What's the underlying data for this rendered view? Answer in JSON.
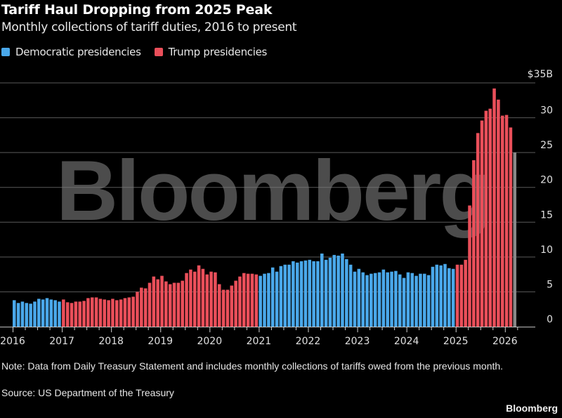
{
  "header": {
    "title": "Tariff Haul Dropping from 2025 Peak",
    "subtitle": "Monthly collections of tariff duties, 2016 to present"
  },
  "legend": [
    {
      "label": "Democratic presidencies",
      "color": "#4aa8ea"
    },
    {
      "label": "Trump presidencies",
      "color": "#ea4f5a"
    }
  ],
  "watermark": "Bloomberg",
  "footer": {
    "note": "Note: Data from Daily Treasury Statement and includes monthly collections of tariffs owed from the previous month.",
    "source": "Source: US Department of the Treasury",
    "brand": "Bloomberg"
  },
  "chart_data": {
    "type": "bar",
    "title": "Tariff Haul Dropping from 2025 Peak",
    "subtitle": "Monthly collections of tariff duties, 2016 to present",
    "xlabel": "",
    "ylabel": "",
    "y_unit_label": "$35B",
    "ylim": [
      0,
      35
    ],
    "yticks": [
      0,
      5,
      10,
      15,
      20,
      25,
      30,
      35
    ],
    "ytick_labels": [
      "0",
      "5",
      "10",
      "15",
      "20",
      "25",
      "30",
      "$35B"
    ],
    "xticks": [
      "2016",
      "2017",
      "2018",
      "2019",
      "2020",
      "2021",
      "2022",
      "2023",
      "2024",
      "2025",
      "2026"
    ],
    "grid": true,
    "legend_position": "top-left",
    "start": "2016-01",
    "series": [
      {
        "name": "Democratic presidencies",
        "color": "#4aa8ea",
        "range": [
          "2016-01",
          "2016-12"
        ]
      },
      {
        "name": "Trump presidencies",
        "color": "#ea4f5a",
        "range": [
          "2017-01",
          "2020-12"
        ]
      },
      {
        "name": "Democratic presidencies",
        "color": "#4aa8ea",
        "range": [
          "2021-01",
          "2024-12"
        ]
      },
      {
        "name": "Trump presidencies",
        "color": "#ea4f5a",
        "range": [
          "2025-01",
          "2026-02"
        ]
      }
    ],
    "values": [
      3.8,
      3.4,
      3.6,
      3.4,
      3.3,
      3.6,
      4.0,
      3.9,
      4.1,
      3.9,
      3.8,
      3.6,
      3.9,
      3.5,
      3.4,
      3.6,
      3.6,
      3.7,
      4.1,
      4.2,
      4.2,
      4.0,
      3.9,
      3.8,
      4.0,
      3.8,
      3.9,
      4.1,
      4.2,
      4.3,
      5.0,
      5.6,
      5.5,
      6.3,
      7.2,
      6.8,
      7.3,
      6.5,
      6.1,
      6.3,
      6.3,
      6.6,
      7.7,
      8.2,
      7.9,
      8.8,
      8.3,
      7.5,
      7.9,
      7.8,
      6.1,
      5.3,
      5.3,
      5.9,
      6.6,
      7.2,
      7.7,
      7.6,
      7.6,
      7.5,
      7.3,
      7.6,
      7.7,
      8.5,
      7.9,
      8.7,
      8.9,
      8.9,
      9.4,
      9.2,
      9.4,
      9.5,
      9.6,
      9.4,
      9.4,
      10.5,
      9.6,
      9.9,
      10.3,
      10.2,
      10.5,
      9.7,
      8.9,
      7.9,
      8.3,
      7.8,
      7.4,
      7.6,
      7.7,
      7.8,
      8.2,
      7.8,
      7.9,
      8.0,
      7.5,
      7.0,
      7.8,
      7.7,
      7.3,
      7.6,
      7.6,
      7.4,
      8.6,
      8.9,
      8.8,
      9.0,
      8.4,
      8.3,
      8.9,
      8.9,
      9.6,
      17.4,
      23.9,
      27.8,
      29.6,
      31.0,
      31.3,
      34.2,
      32.6,
      30.3,
      30.4,
      28.6,
      25.0
    ]
  }
}
